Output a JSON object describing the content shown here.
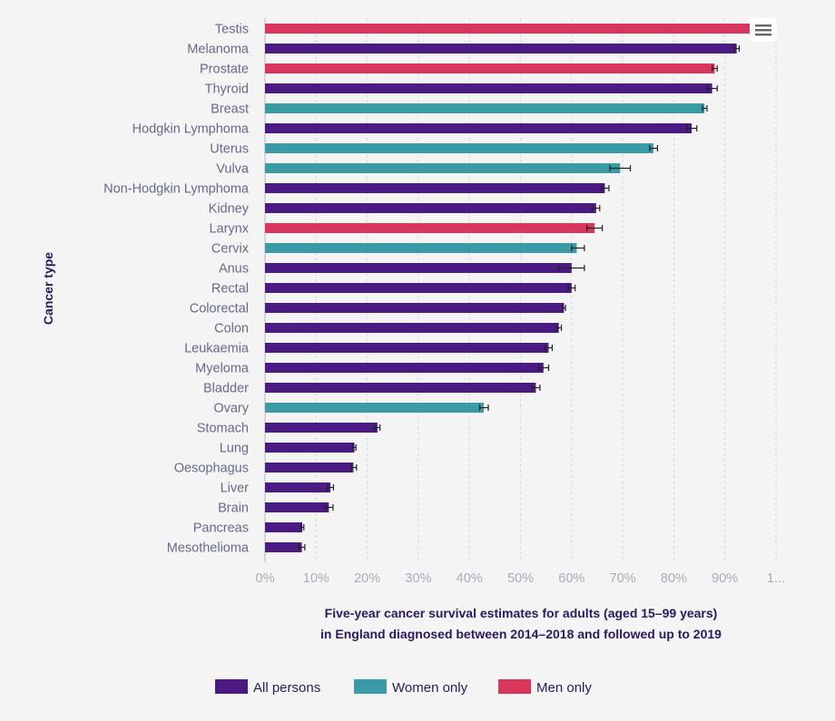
{
  "chart_data": {
    "type": "bar",
    "orientation": "horizontal",
    "title": "",
    "ylabel": "Cancer type",
    "xlabel_lines": [
      "Five-year cancer survival estimates for adults (aged 15–99 years)",
      "in England diagnosed between 2014–2018 and followed up to 2019"
    ],
    "xlim": [
      0,
      100
    ],
    "x_ticks": [
      "0%",
      "10%",
      "20%",
      "30%",
      "40%",
      "50%",
      "60%",
      "70%",
      "80%",
      "90%",
      "1..."
    ],
    "groups": {
      "all": {
        "name": "All persons",
        "color": "#4b1a82"
      },
      "women": {
        "name": "Women only",
        "color": "#3a9aa5"
      },
      "men": {
        "name": "Men only",
        "color": "#d8365a"
      }
    },
    "legend_order": [
      "all",
      "women",
      "men"
    ],
    "categories": [
      {
        "name": "Testis",
        "value": 95.0,
        "group": "men",
        "err": null
      },
      {
        "name": "Melanoma",
        "value": 92.3,
        "group": "all",
        "err": [
          91.8,
          92.8
        ]
      },
      {
        "name": "Prostate",
        "value": 88.0,
        "group": "men",
        "err": [
          87.5,
          88.5
        ]
      },
      {
        "name": "Thyroid",
        "value": 87.5,
        "group": "all",
        "err": [
          86.5,
          88.5
        ]
      },
      {
        "name": "Breast",
        "value": 86.0,
        "group": "women",
        "err": [
          85.6,
          86.5
        ]
      },
      {
        "name": "Hodgkin Lymphoma",
        "value": 83.5,
        "group": "all",
        "err": [
          82.5,
          84.5
        ]
      },
      {
        "name": "Uterus",
        "value": 76.0,
        "group": "women",
        "err": [
          75.3,
          76.8
        ]
      },
      {
        "name": "Vulva",
        "value": 69.5,
        "group": "women",
        "err": [
          67.5,
          71.5
        ]
      },
      {
        "name": "Non-Hodgkin Lymphoma",
        "value": 66.5,
        "group": "all",
        "err": [
          65.8,
          67.3
        ]
      },
      {
        "name": "Kidney",
        "value": 64.8,
        "group": "all",
        "err": [
          64.0,
          65.5
        ]
      },
      {
        "name": "Larynx",
        "value": 64.5,
        "group": "men",
        "err": [
          63.0,
          66.0
        ]
      },
      {
        "name": "Cervix",
        "value": 61.0,
        "group": "women",
        "err": [
          60.0,
          62.5
        ]
      },
      {
        "name": "Anus",
        "value": 60.0,
        "group": "all",
        "err": [
          57.5,
          62.5
        ]
      },
      {
        "name": "Rectal",
        "value": 60.0,
        "group": "all",
        "err": [
          59.3,
          60.7
        ]
      },
      {
        "name": "Colorectal",
        "value": 58.5,
        "group": "all",
        "err": [
          58.2,
          58.8
        ]
      },
      {
        "name": "Colon",
        "value": 57.5,
        "group": "all",
        "err": [
          57.0,
          58.0
        ]
      },
      {
        "name": "Leukaemia",
        "value": 55.5,
        "group": "all",
        "err": [
          54.8,
          56.2
        ]
      },
      {
        "name": "Myeloma",
        "value": 54.5,
        "group": "all",
        "err": [
          53.7,
          55.5
        ]
      },
      {
        "name": "Bladder",
        "value": 53.0,
        "group": "all",
        "err": [
          52.2,
          53.8
        ]
      },
      {
        "name": "Ovary",
        "value": 42.8,
        "group": "women",
        "err": [
          42.0,
          43.7
        ]
      },
      {
        "name": "Stomach",
        "value": 22.0,
        "group": "all",
        "err": [
          21.5,
          22.5
        ]
      },
      {
        "name": "Lung",
        "value": 17.5,
        "group": "all",
        "err": [
          17.2,
          17.8
        ]
      },
      {
        "name": "Oesophagus",
        "value": 17.3,
        "group": "all",
        "err": [
          16.8,
          17.9
        ]
      },
      {
        "name": "Liver",
        "value": 12.8,
        "group": "all",
        "err": [
          12.2,
          13.4
        ]
      },
      {
        "name": "Brain",
        "value": 12.5,
        "group": "all",
        "err": [
          11.8,
          13.3
        ]
      },
      {
        "name": "Pancreas",
        "value": 7.3,
        "group": "all",
        "err": [
          7.0,
          7.6
        ]
      },
      {
        "name": "Mesothelioma",
        "value": 7.2,
        "group": "all",
        "err": [
          6.6,
          7.8
        ]
      }
    ]
  },
  "menu": {
    "icon": "hamburger-menu-icon"
  }
}
